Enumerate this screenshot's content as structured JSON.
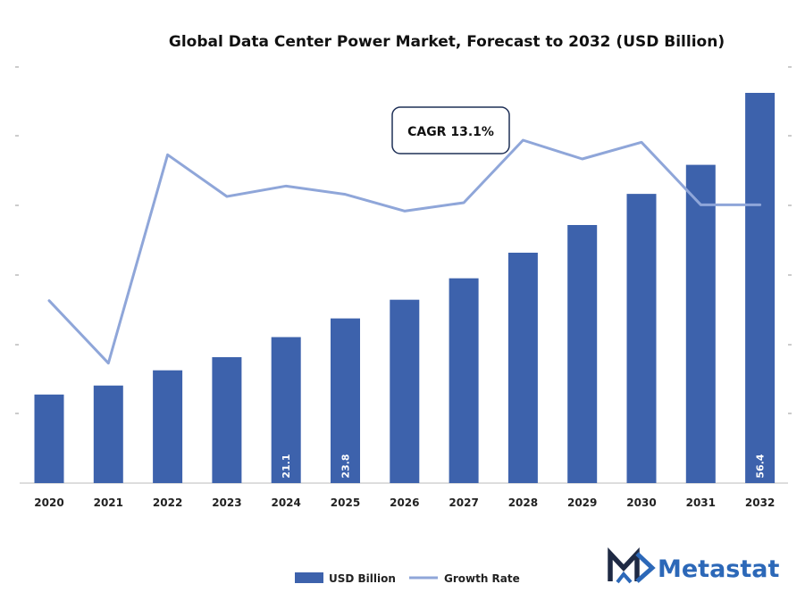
{
  "chart_data": {
    "type": "bar",
    "title": "Global Data Center Power Market, Forecast to 2032 (USD Billion)",
    "categories": [
      "2020",
      "2021",
      "2022",
      "2023",
      "2024",
      "2025",
      "2026",
      "2027",
      "2028",
      "2029",
      "2030",
      "2031",
      "2032"
    ],
    "series": [
      {
        "name": "USD Billion",
        "type": "bar",
        "values": [
          12.8,
          14.1,
          16.3,
          18.2,
          21.1,
          23.8,
          26.5,
          29.6,
          33.3,
          37.3,
          41.8,
          46.0,
          56.4
        ],
        "data_labels": {
          "4": "21.1",
          "5": "23.8",
          "12": "56.4"
        }
      },
      {
        "name": "Growth Rate",
        "type": "line",
        "values": [
          8.0,
          5.0,
          15.0,
          13.0,
          13.5,
          13.1,
          12.3,
          12.7,
          15.7,
          14.8,
          15.6,
          12.6,
          12.6
        ]
      }
    ],
    "annotation": "CAGR 13.1%",
    "grid": false,
    "legend_position": "bottom",
    "colors": {
      "bar": "#3d62ac",
      "line": "#8fa6d9"
    }
  },
  "brand": {
    "name": "Metastat",
    "color": "#2c68b8",
    "icon": "m-logo-icon"
  }
}
